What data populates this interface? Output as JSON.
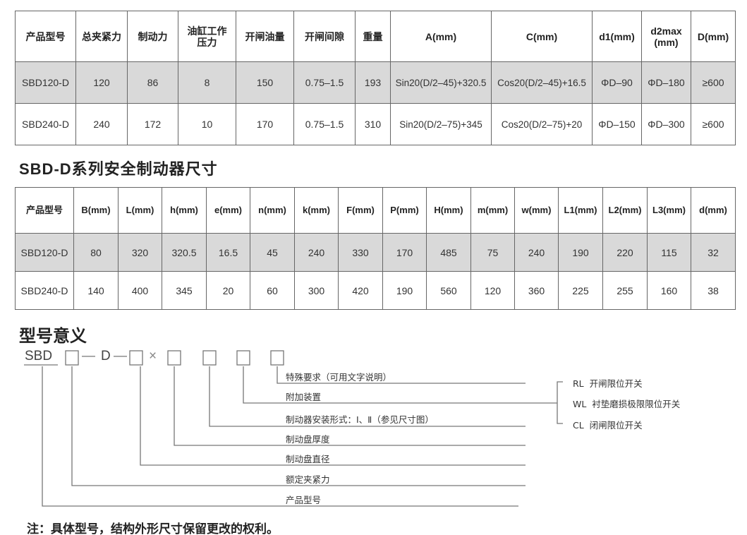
{
  "table1": {
    "headers": [
      "产品型号",
      "总夹紧力",
      "制动力",
      "油缸工作\n压力",
      "开闸油量",
      "开闸间隙",
      "重量",
      "A(mm)",
      "C(mm)",
      "d1(mm)",
      "d2max\n(mm)",
      "D(mm)"
    ],
    "rows": [
      [
        "SBD120-D",
        "120",
        "86",
        "8",
        "150",
        "0.75–1.5",
        "193",
        "Sin20(D/2–45)+320.5",
        "Cos20(D/2–45)+16.5",
        "ΦD–90",
        "ΦD–180",
        "≥600"
      ],
      [
        "SBD240-D",
        "240",
        "172",
        "10",
        "170",
        "0.75–1.5",
        "310",
        "Sin20(D/2–75)+345",
        "Cos20(D/2–75)+20",
        "ΦD–150",
        "ΦD–300",
        "≥600"
      ]
    ]
  },
  "section2_title": "SBD-D系列安全制动器尺寸",
  "table2": {
    "headers": [
      "产品型号",
      "B(mm)",
      "L(mm)",
      "h(mm)",
      "e(mm)",
      "n(mm)",
      "k(mm)",
      "F(mm)",
      "P(mm)",
      "H(mm)",
      "m(mm)",
      "w(mm)",
      "L1(mm)",
      "L2(mm)",
      "L3(mm)",
      "d(mm)"
    ],
    "rows": [
      [
        "SBD120-D",
        "80",
        "320",
        "320.5",
        "16.5",
        "45",
        "240",
        "330",
        "170",
        "485",
        "75",
        "240",
        "190",
        "220",
        "115",
        "32"
      ],
      [
        "SBD240-D",
        "140",
        "400",
        "345",
        "20",
        "60",
        "300",
        "420",
        "190",
        "560",
        "120",
        "360",
        "225",
        "255",
        "160",
        "38"
      ]
    ]
  },
  "section3_title": "型号意义",
  "model_code": {
    "prefix": "SBD",
    "d": "D",
    "dash": "—",
    "times": "×"
  },
  "labels": [
    "特殊要求（可用文字说明）",
    "附加装置",
    "制动器安装形式：Ⅰ、Ⅱ（参见尺寸图）",
    "制动盘厚度",
    "制动盘直径",
    "额定夹紧力",
    "产品型号"
  ],
  "options": [
    {
      "code": "RL",
      "text": "开闸限位开关"
    },
    {
      "code": "WL",
      "text": "衬垫磨损极限限位开关"
    },
    {
      "code": "CL",
      "text": "闭闸限位开关"
    }
  ],
  "note": "注：具体型号，结构外形尺寸保留更改的权利。",
  "colors": {
    "row_shade": "#d9d9d9",
    "border": "#666666",
    "line": "#777777"
  }
}
